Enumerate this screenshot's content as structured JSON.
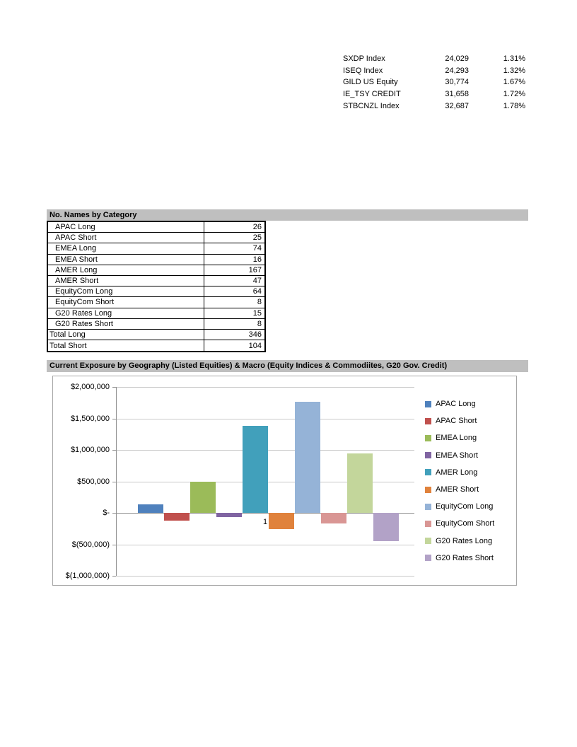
{
  "colors": {
    "section_header_bg": "#BFBFBF",
    "chart_border": "#A6A6A6",
    "gridline": "#C9C9C9",
    "axis_line": "#8F8F8F"
  },
  "index_table": {
    "rows": [
      {
        "label": "SXDP Index",
        "value": "24,029",
        "pct": "1.31%"
      },
      {
        "label": "ISEQ Index",
        "value": "24,293",
        "pct": "1.32%"
      },
      {
        "label": "GILD US Equity",
        "value": "30,774",
        "pct": "1.67%"
      },
      {
        "label": "IE_TSY CREDIT",
        "value": "31,658",
        "pct": "1.72%"
      },
      {
        "label": "STBCNZL Index",
        "value": "32,687",
        "pct": "1.78%"
      }
    ]
  },
  "names_table": {
    "header": "No. Names by Category",
    "rows": [
      {
        "label": "APAC Long",
        "value": "26",
        "indent": true
      },
      {
        "label": "APAC Short",
        "value": "25",
        "indent": true
      },
      {
        "label": "EMEA Long",
        "value": "74",
        "indent": true
      },
      {
        "label": "EMEA Short",
        "value": "16",
        "indent": true
      },
      {
        "label": "AMER Long",
        "value": "167",
        "indent": true
      },
      {
        "label": "AMER Short",
        "value": "47",
        "indent": true
      },
      {
        "label": "EquityCom Long",
        "value": "64",
        "indent": true
      },
      {
        "label": "EquityCom Short",
        "value": "8",
        "indent": true
      },
      {
        "label": "G20 Rates Long",
        "value": "15",
        "indent": true
      },
      {
        "label": "G20 Rates Short",
        "value": "8",
        "indent": true
      },
      {
        "label": "Total Long",
        "value": "346",
        "indent": false
      },
      {
        "label": "Total Short",
        "value": "104",
        "indent": false
      }
    ]
  },
  "chart_section": {
    "header": "Current Exposure by Geography (Listed Equities) & Macro (Equity Indices & Commodiites, G20 Gov. Credit)"
  },
  "chart_data": {
    "type": "bar",
    "title": "",
    "categories": [
      "1"
    ],
    "x_axis_label": "1",
    "series": [
      {
        "name": "APAC Long",
        "value": 130000,
        "color": "#4F81BD"
      },
      {
        "name": "APAC Short",
        "value": -120000,
        "color": "#C0504D"
      },
      {
        "name": "EMEA Long",
        "value": 500000,
        "color": "#9BBB59"
      },
      {
        "name": "EMEA Short",
        "value": -65000,
        "color": "#8064A2"
      },
      {
        "name": "AMER Long",
        "value": 1380000,
        "color": "#41A0BB"
      },
      {
        "name": "AMER Short",
        "value": -255000,
        "color": "#E0823C"
      },
      {
        "name": "EquityCom Long",
        "value": 1760000,
        "color": "#95B3D7"
      },
      {
        "name": "EquityCom Short",
        "value": -170000,
        "color": "#D99694"
      },
      {
        "name": "G20 Rates Long",
        "value": 940000,
        "color": "#C3D69B"
      },
      {
        "name": "G20 Rates Short",
        "value": -455000,
        "color": "#B2A2C7"
      }
    ],
    "y_ticks": [
      "$2,000,000",
      "$1,500,000",
      "$1,000,000",
      "$500,000",
      "$-",
      "$(500,000)",
      "$(1,000,000)"
    ],
    "y_tick_values": [
      2000000,
      1500000,
      1000000,
      500000,
      0,
      -500000,
      -1000000
    ],
    "ylim": [
      -1000000,
      2000000
    ],
    "grid": true,
    "legend_position": "right"
  }
}
